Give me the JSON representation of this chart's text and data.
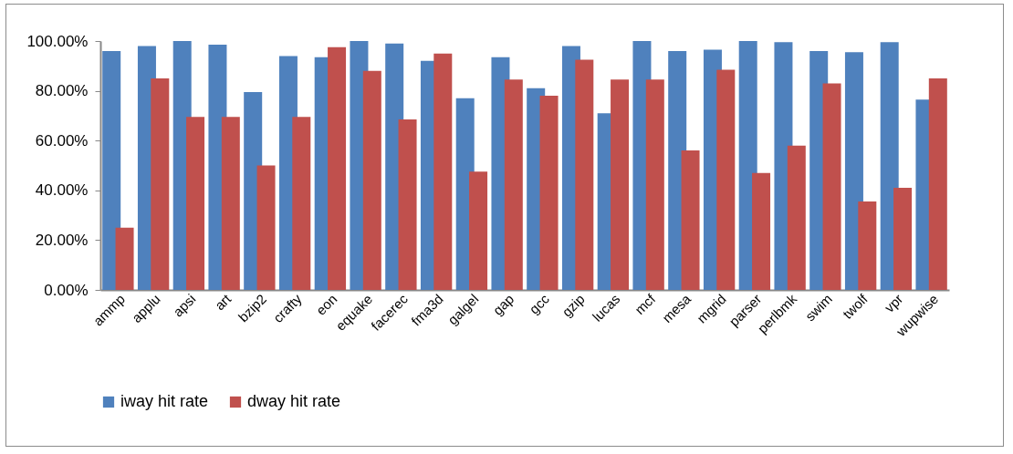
{
  "chart_data": {
    "type": "bar",
    "categories": [
      "ammp",
      "applu",
      "apsi",
      "art",
      "bzip2",
      "crafty",
      "eon",
      "equake",
      "facerec",
      "fma3d",
      "galgel",
      "gap",
      "gcc",
      "gzip",
      "lucas",
      "mcf",
      "mesa",
      "mgrid",
      "parser",
      "perlbmk",
      "swim",
      "twolf",
      "vpr",
      "wupwise"
    ],
    "series": [
      {
        "name": "iway hit rate",
        "color": "#4f81bd",
        "values": [
          96,
          98,
          100,
          98.5,
          79.5,
          94,
          93.5,
          100,
          99,
          92,
          77,
          93.5,
          81,
          98,
          71,
          100,
          96,
          96.5,
          100,
          99.5,
          96,
          95.5,
          99.5,
          76.5
        ]
      },
      {
        "name": "dway hit rate",
        "color": "#c0504d",
        "values": [
          25,
          85,
          69.5,
          69.5,
          50,
          69.5,
          97.5,
          88,
          68.5,
          95,
          47.5,
          84.5,
          78,
          92.5,
          84.5,
          84.5,
          56,
          88.5,
          47,
          58,
          83,
          35.5,
          41,
          85
        ]
      }
    ],
    "ylim": [
      0,
      100
    ],
    "yticks": [
      {
        "value": 0,
        "label": "0.00%"
      },
      {
        "value": 20,
        "label": "20.00%"
      },
      {
        "value": 40,
        "label": "40.00%"
      },
      {
        "value": 60,
        "label": "60.00%"
      },
      {
        "value": 80,
        "label": "80.00%"
      },
      {
        "value": 100,
        "label": "100.00%"
      }
    ],
    "grid": false,
    "legend": "bottom"
  }
}
